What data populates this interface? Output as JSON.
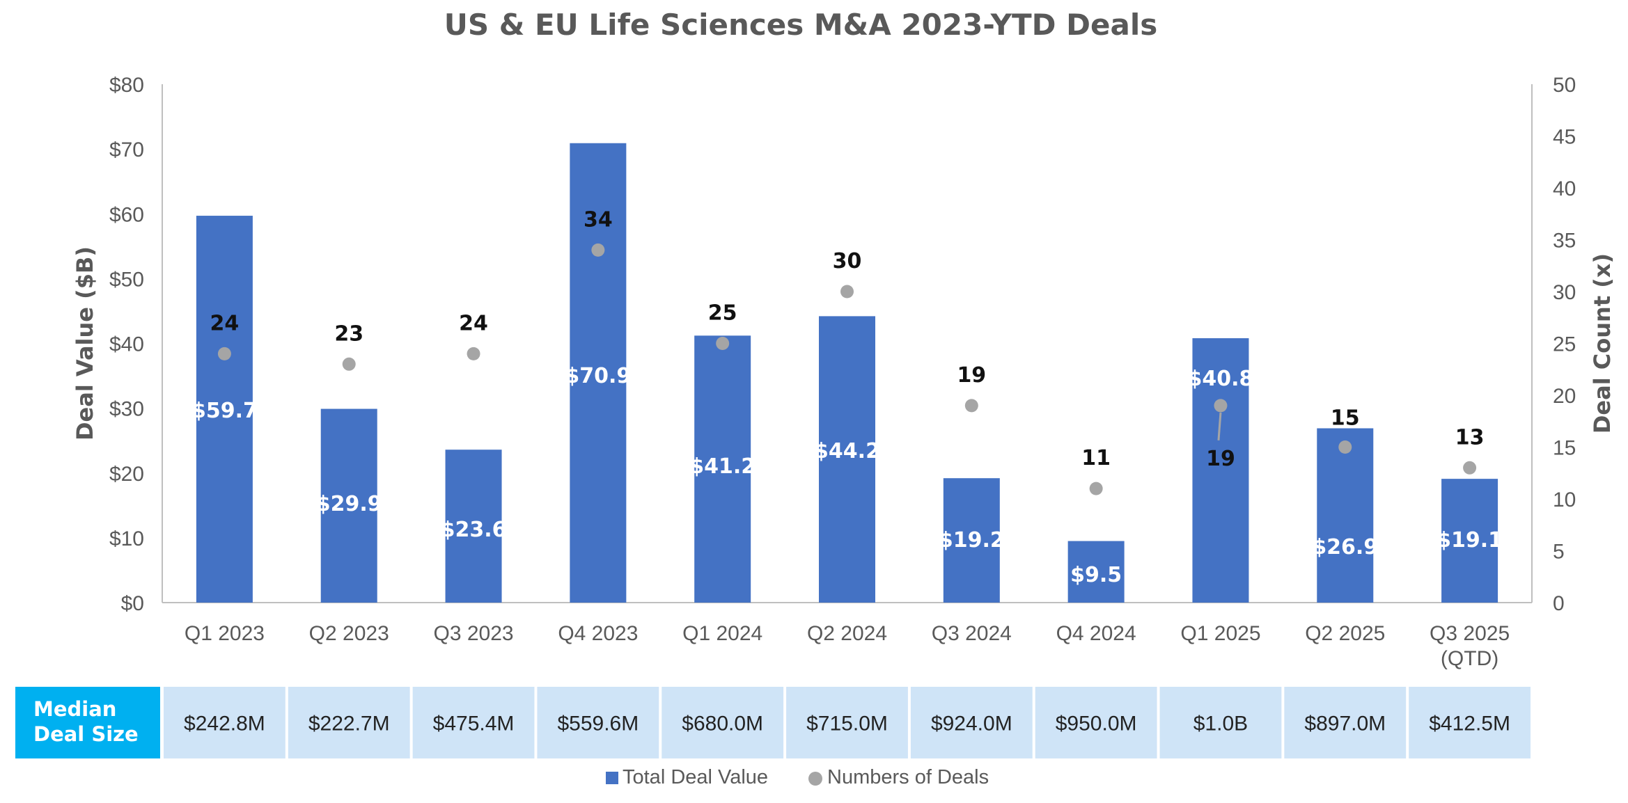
{
  "chart_data": {
    "type": "bar",
    "title": "US & EU Life Sciences M&A 2023-YTD Deals",
    "categories": [
      "Q1 2023",
      "Q2 2023",
      "Q3 2023",
      "Q4 2023",
      "Q1 2024",
      "Q2 2024",
      "Q3 2024",
      "Q4 2024",
      "Q1 2025",
      "Q2 2025",
      "Q3 2025\n(QTD)"
    ],
    "series": [
      {
        "name": "Total Deal Value",
        "axis": "left",
        "type": "bar",
        "color": "#4472C4",
        "values": [
          59.7,
          29.9,
          23.6,
          70.9,
          41.2,
          44.2,
          19.2,
          9.5,
          40.8,
          26.9,
          19.1
        ],
        "labels": [
          "$59.7",
          "$29.9",
          "$23.6",
          "$70.9",
          "$41.2",
          "$44.2",
          "$19.2",
          "$9.5",
          "$40.8",
          "$26.9",
          "$19.1"
        ]
      },
      {
        "name": "Numbers of Deals",
        "axis": "right",
        "type": "scatter",
        "color": "#A5A5A5",
        "values": [
          24,
          23,
          24,
          34,
          25,
          30,
          19,
          11,
          19,
          15,
          13
        ],
        "labels": [
          "24",
          "23",
          "24",
          "34",
          "25",
          "30",
          "19",
          "11",
          "19",
          "15",
          "13"
        ]
      }
    ],
    "ylabel": "Deal Value ($B)",
    "ylabel_right": "Deal Count (x)",
    "ylim": [
      0,
      80
    ],
    "ylim_right": [
      0,
      50
    ],
    "yticks": [
      "$0",
      "$10",
      "$20",
      "$30",
      "$40",
      "$50",
      "$60",
      "$70",
      "$80"
    ],
    "yticks_right": [
      "0",
      "5",
      "10",
      "15",
      "20",
      "25",
      "30",
      "35",
      "40",
      "45",
      "50"
    ],
    "grid": false,
    "legend": "bottom",
    "median_table": {
      "header": [
        "Median",
        "Deal Size"
      ],
      "header_color": "#00B0F0",
      "cell_color": "#CFE4F7",
      "values": [
        "$242.8M",
        "$222.7M",
        "$475.4M",
        "$559.6M",
        "$680.0M",
        "$715.0M",
        "$924.0M",
        "$950.0M",
        "$1.0B",
        "$897.0M",
        "$412.5M"
      ]
    }
  }
}
